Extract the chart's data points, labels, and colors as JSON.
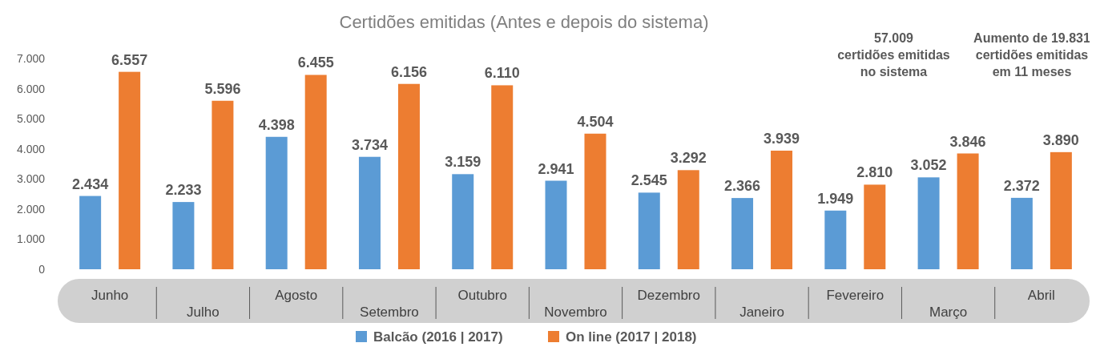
{
  "chart_data": {
    "type": "bar",
    "title": "Certidões emitidas (Antes e depois do sistema)",
    "categories": [
      "Junho",
      "Julho",
      "Agosto",
      "Setembro",
      "Outubro",
      "Novembro",
      "Dezembro",
      "Janeiro",
      "Fevereiro",
      "Março",
      "Abril"
    ],
    "series": [
      {
        "name": "Balcão (2016 | 2017)",
        "color": "#5b9bd5",
        "values": [
          2434,
          2233,
          4398,
          3734,
          3159,
          2941,
          2545,
          2366,
          1949,
          3052,
          2372
        ],
        "value_labels": [
          "2.434",
          "2.233",
          "4.398",
          "3.734",
          "3.159",
          "2.941",
          "2.545",
          "2.366",
          "1.949",
          "3.052",
          "2.372"
        ]
      },
      {
        "name": "On line (2017 | 2018)",
        "color": "#ed7d31",
        "values": [
          6557,
          5596,
          6455,
          6156,
          6110,
          4504,
          3292,
          3939,
          2810,
          3846,
          3890
        ],
        "value_labels": [
          "6.557",
          "5.596",
          "6.455",
          "6.156",
          "6.110",
          "4.504",
          "3.292",
          "3.939",
          "2.810",
          "3.846",
          "3.890"
        ]
      }
    ],
    "ylim": [
      0,
      7000
    ],
    "yticks": [
      {
        "value": 0,
        "label": "0"
      },
      {
        "value": 1000,
        "label": "1.000"
      },
      {
        "value": 2000,
        "label": "2.000"
      },
      {
        "value": 3000,
        "label": "3.000"
      },
      {
        "value": 4000,
        "label": "4.000"
      },
      {
        "value": 5000,
        "label": "5.000"
      },
      {
        "value": 6000,
        "label": "6.000"
      },
      {
        "value": 7000,
        "label": "7.000"
      }
    ],
    "legend": "bottom",
    "annotations": [
      "57.009\ncertidões emitidas\nno sistema",
      "Aumento de 19.831\ncertidões emitidas\nem 11 meses"
    ]
  }
}
